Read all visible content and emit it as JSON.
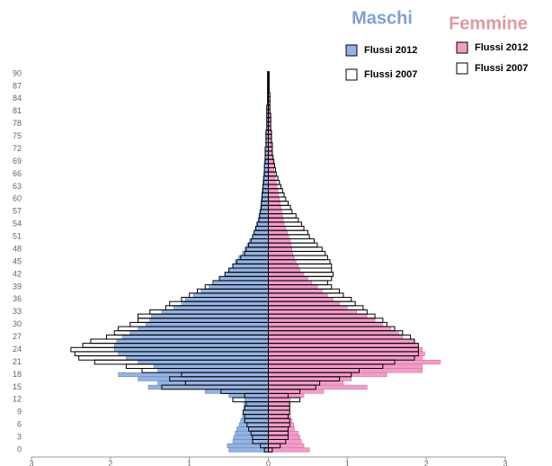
{
  "chart_data": {
    "type": "pyramid",
    "y": [
      0,
      1,
      2,
      3,
      4,
      5,
      6,
      7,
      8,
      9,
      10,
      11,
      12,
      13,
      14,
      15,
      16,
      17,
      18,
      19,
      20,
      21,
      22,
      23,
      24,
      25,
      26,
      27,
      28,
      29,
      30,
      31,
      32,
      33,
      34,
      35,
      36,
      37,
      38,
      39,
      40,
      41,
      42,
      43,
      44,
      45,
      46,
      47,
      48,
      49,
      50,
      51,
      52,
      53,
      54,
      55,
      56,
      57,
      58,
      59,
      60,
      61,
      62,
      63,
      64,
      65,
      66,
      67,
      68,
      69,
      70,
      71,
      72,
      73,
      74,
      75,
      76,
      77,
      78,
      79,
      80,
      81,
      82,
      83,
      84,
      85,
      86,
      87,
      88,
      89,
      90
    ],
    "ylim": [
      -1.7,
      91.5
    ],
    "yticks": [
      0,
      3,
      6,
      9,
      12,
      15,
      18,
      21,
      24,
      27,
      30,
      33,
      36,
      39,
      42,
      45,
      48,
      51,
      54,
      57,
      60,
      63,
      66,
      69,
      72,
      75,
      78,
      81,
      84,
      87,
      90
    ],
    "xlim": [
      -3,
      3
    ],
    "xticks": [
      {
        "value": -3,
        "label": "3"
      },
      {
        "value": -2,
        "label": "2"
      },
      {
        "value": -1,
        "label": "1"
      },
      0,
      1,
      2,
      3
    ],
    "groups": [
      {
        "title": "Maschi",
        "color": "#7f9fd9",
        "series": [
          {
            "name": "Flussi 2012",
            "color": "#94b3e3",
            "values": [
              -0.5,
              -0.52,
              -0.45,
              -0.44,
              -0.42,
              -0.4,
              -0.37,
              -0.35,
              -0.33,
              -0.32,
              -0.31,
              -0.31,
              -0.3,
              -0.5,
              -0.8,
              -1.52,
              -1.4,
              -1.65,
              -1.9,
              -1.4,
              -1.45,
              -1.65,
              -1.8,
              -1.9,
              -1.95,
              -1.95,
              -1.92,
              -1.85,
              -1.75,
              -1.65,
              -1.55,
              -1.5,
              -1.48,
              -1.35,
              -1.2,
              -1.1,
              -1.05,
              -0.95,
              -0.85,
              -0.75,
              -0.68,
              -0.62,
              -0.55,
              -0.5,
              -0.45,
              -0.42,
              -0.38,
              -0.33,
              -0.3,
              -0.27,
              -0.24,
              -0.2,
              -0.18,
              -0.16,
              -0.15,
              -0.13,
              -0.12,
              -0.11,
              -0.1,
              -0.09,
              -0.09,
              -0.08,
              -0.08,
              -0.07,
              -0.07,
              -0.06,
              -0.06,
              -0.05,
              -0.05,
              -0.05,
              -0.04,
              -0.04,
              -0.04,
              -0.03,
              -0.03,
              -0.03,
              -0.03,
              -0.02,
              -0.02,
              -0.02,
              -0.02,
              -0.02,
              -0.02,
              -0.01,
              -0.01,
              -0.01,
              -0.01,
              -0.01,
              -0.01,
              -0.01,
              -0.01
            ]
          },
          {
            "name": "Flussi 2007",
            "color": "#ffffff",
            "values": [
              -0.05,
              -0.1,
              -0.2,
              -0.2,
              -0.22,
              -0.25,
              -0.27,
              -0.3,
              -0.3,
              -0.32,
              -0.3,
              -0.28,
              -0.45,
              -0.3,
              -0.6,
              -1.35,
              -1.05,
              -1.25,
              -1.1,
              -1.6,
              -1.8,
              -2.2,
              -2.4,
              -2.45,
              -2.5,
              -2.35,
              -2.25,
              -2.05,
              -1.95,
              -1.9,
              -1.75,
              -1.65,
              -1.65,
              -1.5,
              -1.3,
              -1.25,
              -1.1,
              -1.0,
              -0.9,
              -0.8,
              -0.7,
              -0.62,
              -0.55,
              -0.5,
              -0.45,
              -0.4,
              -0.35,
              -0.3,
              -0.28,
              -0.25,
              -0.22,
              -0.2,
              -0.18,
              -0.16,
              -0.14,
              -0.12,
              -0.11,
              -0.1,
              -0.09,
              -0.09,
              -0.08,
              -0.08,
              -0.07,
              -0.07,
              -0.06,
              -0.06,
              -0.05,
              -0.05,
              -0.05,
              -0.04,
              -0.04,
              -0.04,
              -0.04,
              -0.03,
              -0.03,
              -0.03,
              -0.03,
              -0.02,
              -0.02,
              -0.02,
              -0.02,
              -0.02,
              -0.02,
              -0.01,
              -0.01,
              -0.01,
              -0.01,
              -0.01,
              -0.01,
              -0.01,
              -0.01
            ]
          }
        ]
      },
      {
        "title": "Femmine",
        "color": "#e0999f",
        "series": [
          {
            "name": "Flussi 2012",
            "color": "#f49cc9",
            "values": [
              0.52,
              0.45,
              0.42,
              0.4,
              0.38,
              0.33,
              0.32,
              0.3,
              0.28,
              0.27,
              0.27,
              0.26,
              0.28,
              0.45,
              0.7,
              1.25,
              0.95,
              1.05,
              1.5,
              1.95,
              1.95,
              2.18,
              1.95,
              1.98,
              1.95,
              1.9,
              1.85,
              1.7,
              1.65,
              1.55,
              1.45,
              1.35,
              1.25,
              1.12,
              1.0,
              0.9,
              0.82,
              0.75,
              0.68,
              0.62,
              0.55,
              0.5,
              0.45,
              0.4,
              0.38,
              0.35,
              0.33,
              0.31,
              0.3,
              0.29,
              0.28,
              0.26,
              0.24,
              0.22,
              0.2,
              0.19,
              0.18,
              0.17,
              0.16,
              0.15,
              0.14,
              0.13,
              0.12,
              0.11,
              0.1,
              0.09,
              0.08,
              0.07,
              0.07,
              0.06,
              0.05,
              0.05,
              0.04,
              0.04,
              0.04,
              0.03,
              0.03,
              0.03,
              0.03,
              0.02,
              0.02,
              0.02,
              0.02,
              0.02,
              0.01,
              0.01,
              0.01,
              0.01,
              0.01,
              0.01,
              0.01
            ]
          },
          {
            "name": "Flussi 2007",
            "color": "#ffffff",
            "values": [
              0.05,
              0.15,
              0.22,
              0.25,
              0.25,
              0.25,
              0.27,
              0.27,
              0.25,
              0.27,
              0.27,
              0.27,
              0.4,
              0.25,
              0.4,
              0.6,
              0.65,
              0.9,
              1.05,
              1.15,
              1.45,
              1.6,
              1.85,
              1.9,
              1.9,
              1.9,
              1.85,
              1.8,
              1.7,
              1.6,
              1.5,
              1.45,
              1.35,
              1.25,
              1.2,
              1.1,
              1.05,
              0.95,
              0.9,
              0.8,
              0.75,
              0.8,
              0.82,
              0.8,
              0.8,
              0.78,
              0.75,
              0.72,
              0.68,
              0.62,
              0.58,
              0.52,
              0.5,
              0.45,
              0.42,
              0.38,
              0.35,
              0.3,
              0.28,
              0.25,
              0.22,
              0.2,
              0.18,
              0.16,
              0.14,
              0.12,
              0.1,
              0.09,
              0.08,
              0.07,
              0.06,
              0.05,
              0.05,
              0.05,
              0.04,
              0.04,
              0.04,
              0.03,
              0.03,
              0.03,
              0.03,
              0.02,
              0.02,
              0.02,
              0.02,
              0.02,
              0.01,
              0.01,
              0.01,
              0.01,
              0.01
            ]
          }
        ]
      }
    ]
  }
}
